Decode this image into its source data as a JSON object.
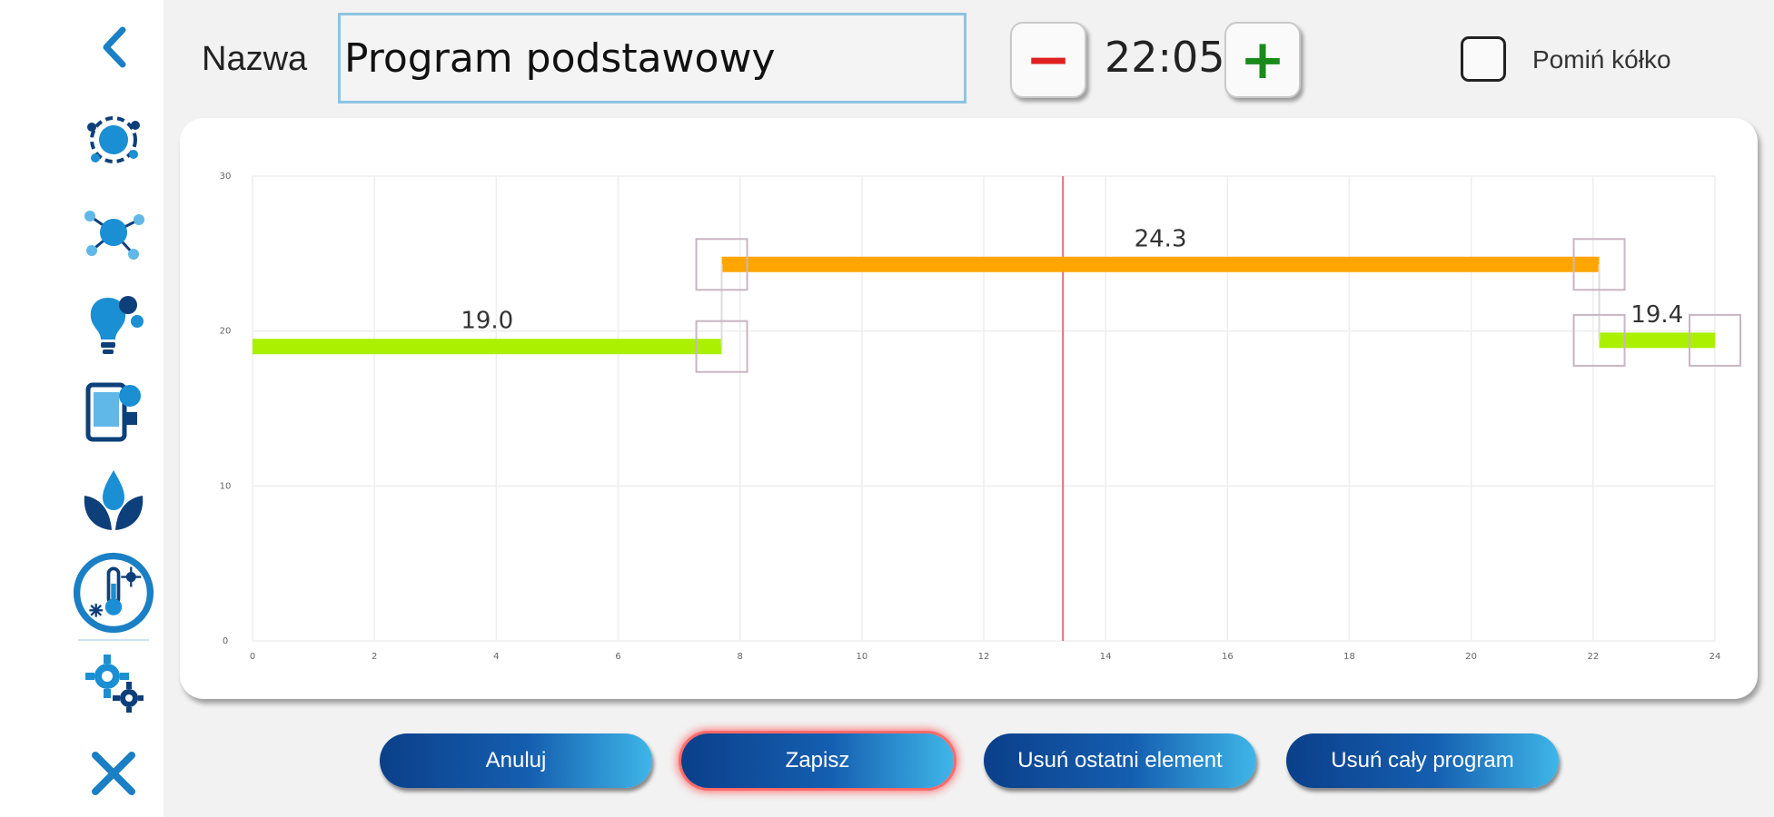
{
  "header": {
    "name_label": "Nazwa",
    "name_value": "Program podstawowy",
    "time": "22:05",
    "minus_label": "−",
    "plus_label": "+",
    "skip_label": "Pomiń kółko",
    "skip_checked": false
  },
  "sidebar": {
    "icons": [
      "back-chevron-icon",
      "water-circuit-icon",
      "network-nodes-icon",
      "lightbulb-icon",
      "tablet-control-icon",
      "leaf-drop-icon",
      "thermometer-climate-icon",
      "settings-gears-icon",
      "close-x-icon"
    ],
    "active": "thermometer-climate-icon",
    "accent": "#1a7fc4",
    "dark": "#0d3f7a"
  },
  "buttons": {
    "cancel": "Anuluj",
    "save": "Zapisz",
    "delete_last": "Usuń ostatni element",
    "delete_all": "Usuń cały program"
  },
  "chart_data": {
    "type": "line",
    "xlim": [
      0,
      24
    ],
    "ylim": [
      0,
      30
    ],
    "x_ticks": [
      "0",
      "2",
      "4",
      "6",
      "8",
      "10",
      "12",
      "14",
      "16",
      "18",
      "20",
      "22",
      "24"
    ],
    "y_ticks": [
      "0",
      "10",
      "20",
      "30"
    ],
    "current_time_x": 13.3,
    "segments": [
      {
        "start": 0,
        "end": 7.7,
        "value": 19.0,
        "label": "19.0",
        "color": "#aaf000"
      },
      {
        "start": 7.7,
        "end": 22.1,
        "value": 24.3,
        "label": "24.3",
        "color": "#ffa500"
      },
      {
        "start": 22.1,
        "end": 24,
        "value": 19.4,
        "label": "19.4",
        "color": "#aaf000"
      }
    ]
  }
}
